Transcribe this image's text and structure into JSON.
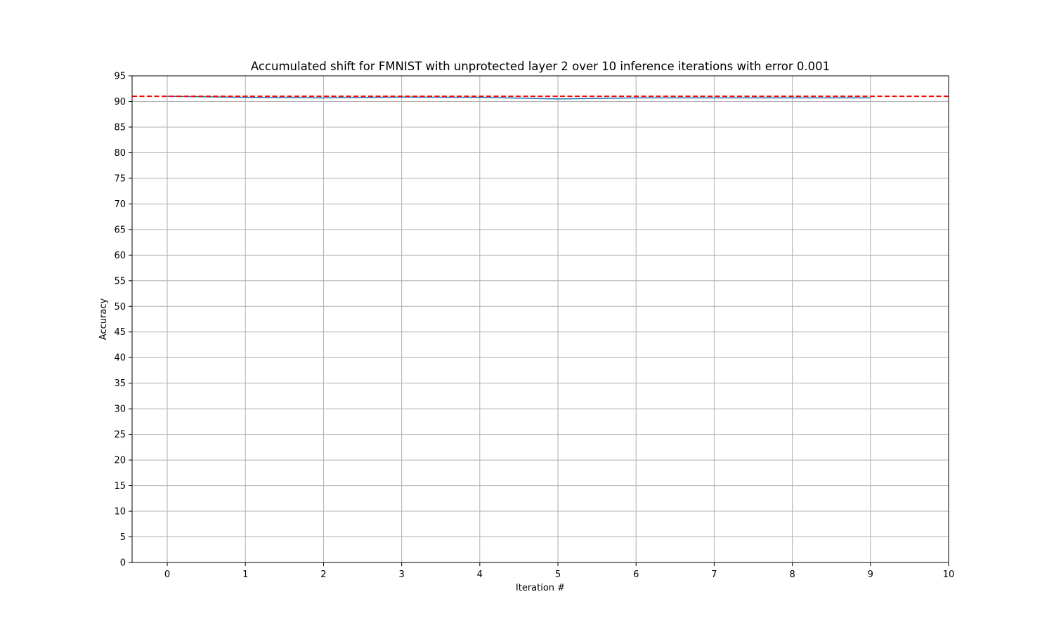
{
  "chart_data": {
    "type": "line",
    "title": "Accumulated shift for FMNIST with unprotected layer 2 over 10 inference iterations with error 0.001",
    "xlabel": "Iteration #",
    "ylabel": "Accuracy",
    "xlim": [
      -0.45,
      10
    ],
    "ylim": [
      0,
      95
    ],
    "xticks": [
      "0",
      "1",
      "2",
      "3",
      "4",
      "5",
      "6",
      "7",
      "8",
      "9",
      "10"
    ],
    "yticks": [
      "0",
      "5",
      "10",
      "15",
      "20",
      "25",
      "30",
      "35",
      "40",
      "45",
      "50",
      "55",
      "60",
      "65",
      "70",
      "75",
      "80",
      "85",
      "90",
      "95"
    ],
    "grid": true,
    "series": [
      {
        "x": [
          0,
          1,
          2,
          3,
          4,
          5,
          6,
          7,
          8,
          9
        ],
        "values": [
          91.0,
          90.8,
          90.7,
          90.85,
          90.8,
          90.5,
          90.7,
          90.7,
          90.7,
          90.7
        ],
        "color": "#1f77b4",
        "style": "solid"
      }
    ],
    "reference_line": {
      "y": 91.0,
      "color": "#ff0000",
      "style": "dashed"
    }
  }
}
